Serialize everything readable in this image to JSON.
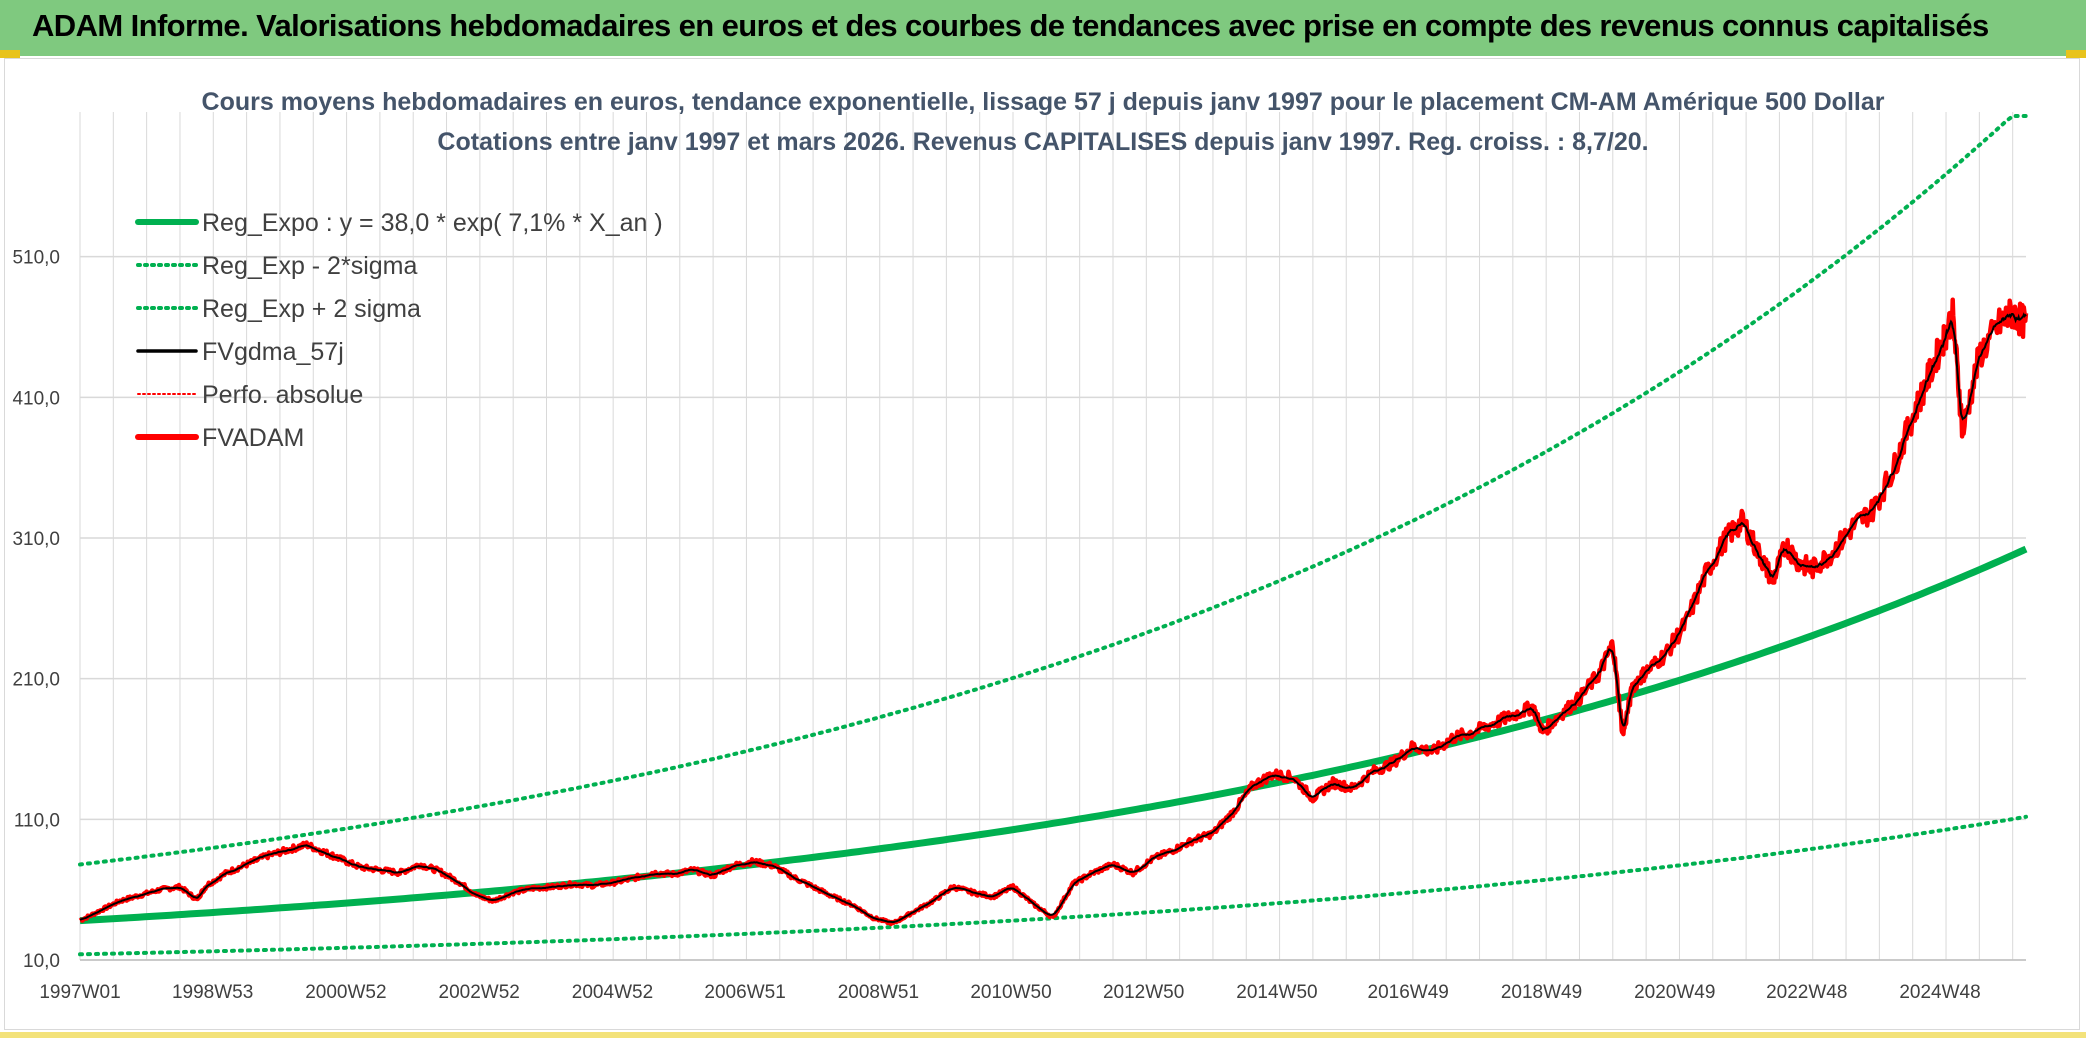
{
  "header": {
    "title": "ADAM Informe. Valorisations hebdomadaires en euros et des courbes de tendances avec prise en compte des revenus connus capitalisés"
  },
  "colors": {
    "header_bg": "#7fc97f",
    "trend": "#00b050",
    "smoothed": "#000000",
    "price": "#ff0000",
    "grid": "#d9d9d9",
    "title": "#44546a"
  },
  "chart_data": {
    "type": "line",
    "title_lines": [
      "Cours moyens hebdomadaires en euros, tendance exponentielle, lissage 57 j depuis janv 1997 pour le placement CM-AM Amérique 500 Dollar",
      "Cotations entre janv 1997 et mars 2026. Revenus CAPITALISES depuis janv 1997. Reg. croiss. : 8,7/20."
    ],
    "x_range": [
      1997.0,
      2026.2
    ],
    "ylim": [
      10,
      610
    ],
    "y_ticks": [
      10,
      110,
      210,
      310,
      410,
      510
    ],
    "y_tick_labels": [
      "10,0",
      "110,0",
      "210,0",
      "310,0",
      "410,0",
      "510,0"
    ],
    "x_ticks": [
      1997.0,
      1998.99,
      2000.99,
      2002.99,
      2004.99,
      2006.98,
      2008.98,
      2010.97,
      2012.96,
      2014.96,
      2016.93,
      2018.93,
      2020.93,
      2022.91,
      2024.91
    ],
    "x_tick_labels": [
      "1997W01",
      "1998W53",
      "2000W52",
      "2002W52",
      "2004W52",
      "2006W51",
      "2008W51",
      "2010W50",
      "2012W50",
      "2014W50",
      "2016W49",
      "2018W49",
      "2020W49",
      "2022W48",
      "2024W48"
    ],
    "grid": true,
    "legend_position": "top-left",
    "trend_formula": {
      "a": 38.0,
      "rate": 0.071,
      "sigma_factor_low": 0.37,
      "sigma_factor_high": 2.05
    },
    "series": [
      {
        "name": "Reg_Expo : y = 38,0 * exp( 7,1% *  X_an )",
        "style": "thick-solid",
        "color": "#00b050",
        "kind": "trend"
      },
      {
        "name": "Reg_Exp - 2*sigma",
        "style": "dotted",
        "color": "#00b050",
        "kind": "trend_low"
      },
      {
        "name": "Reg_Exp + 2 sigma",
        "style": "dotted",
        "color": "#00b050",
        "kind": "trend_high"
      },
      {
        "name": "FVgdma_57j",
        "style": "solid",
        "color": "#000000",
        "kind": "smoothed"
      },
      {
        "name": "Perfo. absolue",
        "style": "dotted-thin",
        "color": "#ff0000",
        "kind": "none"
      },
      {
        "name": "FVADAM",
        "style": "thick-solid",
        "color": "#ff0000",
        "kind": "price",
        "x": [
          1997.0,
          1997.3,
          1997.6,
          1997.9,
          1998.2,
          1998.5,
          1998.75,
          1998.9,
          1999.2,
          1999.5,
          1999.8,
          2000.1,
          2000.4,
          2000.7,
          2000.9,
          2001.2,
          2001.5,
          2001.8,
          2002.1,
          2002.4,
          2002.7,
          2002.95,
          2003.2,
          2003.5,
          2003.8,
          2004.1,
          2004.4,
          2004.7,
          2005.0,
          2005.3,
          2005.6,
          2005.9,
          2006.2,
          2006.5,
          2006.8,
          2007.1,
          2007.4,
          2007.7,
          2008.0,
          2008.3,
          2008.6,
          2008.9,
          2009.2,
          2009.5,
          2009.8,
          2010.1,
          2010.4,
          2010.7,
          2011.0,
          2011.3,
          2011.6,
          2011.9,
          2012.2,
          2012.5,
          2012.8,
          2013.1,
          2013.4,
          2013.7,
          2014.0,
          2014.3,
          2014.6,
          2014.9,
          2015.2,
          2015.5,
          2015.8,
          2016.1,
          2016.4,
          2016.7,
          2017.0,
          2017.3,
          2017.6,
          2017.9,
          2018.2,
          2018.5,
          2018.8,
          2018.95,
          2019.2,
          2019.5,
          2019.8,
          2020.0,
          2020.15,
          2020.3,
          2020.5,
          2020.8,
          2021.1,
          2021.4,
          2021.7,
          2021.95,
          2022.2,
          2022.4,
          2022.6,
          2022.8,
          2023.0,
          2023.3,
          2023.6,
          2023.9,
          2024.2,
          2024.45,
          2024.7,
          2024.95,
          2025.1,
          2025.25,
          2025.5,
          2025.8,
          2026.0,
          2026.2
        ],
        "y": [
          38,
          45,
          52,
          56,
          60,
          62,
          53,
          63,
          72,
          78,
          84,
          88,
          92,
          86,
          82,
          76,
          74,
          72,
          78,
          73,
          65,
          56,
          52,
          58,
          61,
          62,
          64,
          63,
          65,
          68,
          72,
          71,
          74,
          70,
          77,
          80,
          77,
          69,
          62,
          55,
          49,
          40,
          36,
          44,
          52,
          62,
          58,
          55,
          62,
          50,
          40,
          64,
          72,
          78,
          72,
          82,
          88,
          95,
          100,
          115,
          134,
          142,
          140,
          125,
          136,
          132,
          144,
          150,
          162,
          158,
          168,
          172,
          178,
          184,
          190,
          172,
          184,
          196,
          214,
          235,
          170,
          205,
          215,
          228,
          250,
          285,
          310,
          322,
          298,
          280,
          305,
          292,
          288,
          300,
          318,
          330,
          358,
          390,
          420,
          450,
          468,
          385,
          440,
          462,
          470,
          462
        ]
      }
    ]
  }
}
